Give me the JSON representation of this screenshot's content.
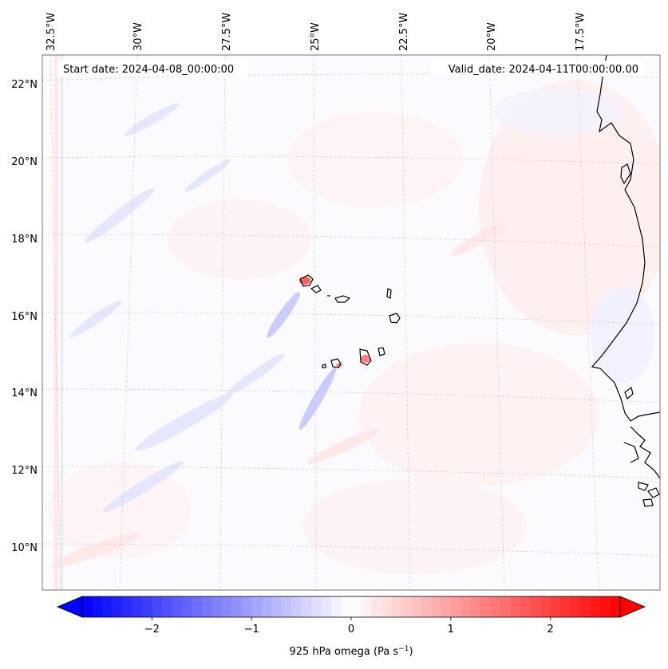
{
  "map": {
    "start_date_label": "Start date: 2024-04-08_00:00:00",
    "valid_date_label": "Valid_date: 2024-04-11T00:00:00.00",
    "lon_labels": [
      "32.5°W",
      "30°W",
      "27.5°W",
      "25°W",
      "22.5°W",
      "20°W",
      "17.5°W"
    ],
    "lat_labels": [
      "22°N",
      "20°N",
      "18°N",
      "16°N",
      "14°N",
      "12°N",
      "10°N"
    ],
    "features": [
      "Cabo Verde islands",
      "West African coastline"
    ],
    "colors": {
      "negative": "#0000ff",
      "zero": "#ffffff",
      "positive": "#ff0000",
      "coast": "#000000",
      "grid": "#c8c8c8"
    }
  },
  "colorbar": {
    "label": "925 hPa omega (Pa s",
    "label_unit_sup": "−1",
    "label_close": ")",
    "ticks": [
      {
        "value": -2,
        "text": "−2"
      },
      {
        "value": -1,
        "text": "−1"
      },
      {
        "value": 0,
        "text": "0"
      },
      {
        "value": 1,
        "text": "1"
      },
      {
        "value": 2,
        "text": "2"
      }
    ],
    "range": [
      -2.7,
      2.7
    ]
  }
}
